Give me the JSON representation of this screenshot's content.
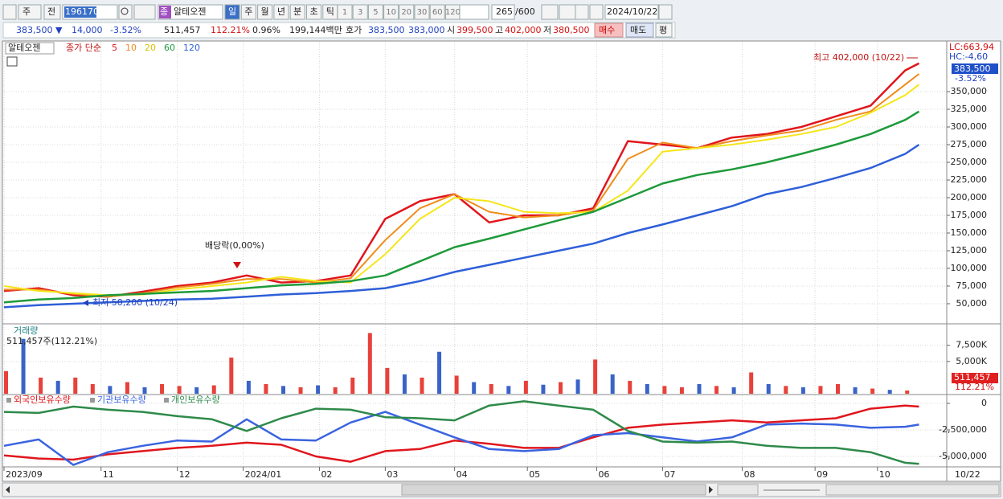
{
  "toolbar": {
    "market": "주",
    "prev": "전",
    "code": "196170",
    "type_badge": "종",
    "name": "알테오젠",
    "periods": [
      "일",
      "주",
      "월",
      "년",
      "분",
      "초",
      "틱"
    ],
    "intervals": [
      "1",
      "3",
      "5",
      "10",
      "20",
      "30",
      "60",
      "120"
    ],
    "count": "265",
    "max": "/600",
    "date": "2024/10/22"
  },
  "info_bar": {
    "price": "383,500 ▼",
    "change": "14,000",
    "change_rate": "-3.52%",
    "volume": "511,457",
    "volume_ratio": "112.21%",
    "turnover": "0.96%",
    "amount": "199,144백만",
    "quote_label": "호가",
    "ask": "383,500",
    "bid": "383,000",
    "open_label": "시",
    "open": "399,500",
    "high_label": "고",
    "high": "402,000",
    "low_label": "저",
    "low": "380,500",
    "buy": "매수",
    "sell": "매도",
    "eval": "평"
  },
  "chart_data": [
    {
      "type": "line",
      "stock_label": "알테오젠",
      "legend_prefix": "종가 단순",
      "x": [
        0,
        10,
        20,
        30,
        40,
        50,
        60,
        70,
        80,
        90,
        100,
        110,
        120,
        130,
        140,
        150,
        160,
        170,
        180,
        190,
        200,
        210,
        220,
        230,
        240,
        250,
        260,
        264
      ],
      "series": [
        {
          "name": "5",
          "color": "#e0161d",
          "values": [
            68000,
            72000,
            62000,
            60000,
            67000,
            75000,
            80000,
            90000,
            80000,
            82000,
            90000,
            170000,
            195000,
            205000,
            165000,
            175000,
            175000,
            185000,
            280000,
            275000,
            270000,
            285000,
            290000,
            300000,
            315000,
            330000,
            380000,
            390000
          ]
        },
        {
          "name": "10",
          "color": "#f08c1c",
          "values": [
            70000,
            70000,
            64000,
            60000,
            65000,
            73000,
            78000,
            85000,
            85000,
            80000,
            86000,
            140000,
            185000,
            205000,
            180000,
            172000,
            175000,
            182000,
            255000,
            278000,
            270000,
            280000,
            288000,
            295000,
            310000,
            322000,
            360000,
            375000
          ]
        },
        {
          "name": "20",
          "color": "#f5e61a",
          "values": [
            75000,
            68000,
            65000,
            62000,
            63000,
            70000,
            75000,
            80000,
            88000,
            82000,
            80000,
            120000,
            170000,
            200000,
            195000,
            180000,
            178000,
            180000,
            210000,
            265000,
            270000,
            275000,
            282000,
            290000,
            300000,
            320000,
            345000,
            360000
          ]
        },
        {
          "name": "60",
          "color": "#1e9a3a",
          "values": [
            52000,
            56000,
            58000,
            62000,
            64000,
            66000,
            68000,
            72000,
            76000,
            78000,
            82000,
            90000,
            110000,
            130000,
            142000,
            155000,
            168000,
            180000,
            200000,
            220000,
            232000,
            240000,
            250000,
            262000,
            275000,
            290000,
            310000,
            322000
          ]
        },
        {
          "name": "120",
          "color": "#2e5fd8",
          "values": [
            45000,
            48000,
            50000,
            52000,
            54000,
            56000,
            57000,
            60000,
            63000,
            65000,
            68000,
            72000,
            82000,
            95000,
            105000,
            115000,
            125000,
            135000,
            150000,
            162000,
            175000,
            188000,
            205000,
            215000,
            228000,
            242000,
            262000,
            275000
          ]
        }
      ],
      "xlim": [
        0,
        272
      ],
      "ylim": [
        22700,
        420500
      ],
      "yticks": [
        {
          "value": 50000,
          "label": "50,000"
        },
        {
          "value": 75000,
          "label": "75,000"
        },
        {
          "value": 100000,
          "label": "100,000"
        },
        {
          "value": 125000,
          "label": "125,000"
        },
        {
          "value": 150000,
          "label": "150,000"
        },
        {
          "value": 175000,
          "label": "175,000"
        },
        {
          "value": 200000,
          "label": "200,000"
        },
        {
          "value": 225000,
          "label": "225,000"
        },
        {
          "value": 250000,
          "label": "250,000"
        },
        {
          "value": 275000,
          "label": "275,000"
        },
        {
          "value": 300000,
          "label": "300,000"
        },
        {
          "value": 325000,
          "label": "325,000"
        },
        {
          "value": 350000,
          "label": "350,000"
        }
      ],
      "grid": true,
      "annotations": [
        "최고 402,000 (10/22)",
        "최저 50,200 (10/24)",
        "배당락(0,00%)"
      ],
      "axis_labels": {
        "lc": "LC:663,94",
        "hc": "HC:-4,60",
        "last": "383,500",
        "change": "-3.52%"
      }
    },
    {
      "type": "bar",
      "title": "거래량",
      "subtitle": "511,457주(112.21%)",
      "x": [
        0,
        5,
        10,
        15,
        20,
        25,
        30,
        35,
        40,
        45,
        50,
        55,
        60,
        65,
        70,
        75,
        80,
        85,
        90,
        95,
        100,
        105,
        110,
        115,
        120,
        125,
        130,
        135,
        140,
        145,
        150,
        155,
        160,
        165,
        170,
        175,
        180,
        185,
        190,
        195,
        200,
        205,
        210,
        215,
        220,
        225,
        230,
        235,
        240,
        245,
        250,
        255,
        260
      ],
      "values": [
        3500000,
        8500000,
        2500000,
        2000000,
        2500000,
        1500000,
        1200000,
        1800000,
        1000000,
        1500000,
        1200000,
        1000000,
        1300000,
        5600000,
        2000000,
        1500000,
        1200000,
        1000000,
        1300000,
        1000000,
        2500000,
        9400000,
        4000000,
        3000000,
        2500000,
        6500000,
        2800000,
        1800000,
        1500000,
        1200000,
        2000000,
        1400000,
        1800000,
        2200000,
        5300000,
        3000000,
        2000000,
        1500000,
        1200000,
        1000000,
        1500000,
        1200000,
        1000000,
        3300000,
        1500000,
        1200000,
        1000000,
        1200000,
        1500000,
        1000000,
        800000,
        600000,
        500000
      ],
      "colors": [
        "#e8413a",
        "#3a63c8",
        "#e8413a",
        "#3a63c8",
        "#e8413a",
        "#e8413a",
        "#3a63c8",
        "#e8413a",
        "#3a63c8",
        "#e8413a",
        "#e8413a",
        "#3a63c8",
        "#e8413a",
        "#e8413a",
        "#3a63c8",
        "#e8413a",
        "#3a63c8",
        "#e8413a",
        "#3a63c8",
        "#e8413a",
        "#e8413a",
        "#e8413a",
        "#e8413a",
        "#3a63c8",
        "#e8413a",
        "#3a63c8",
        "#e8413a",
        "#3a63c8",
        "#e8413a",
        "#3a63c8",
        "#e8413a",
        "#3a63c8",
        "#e8413a",
        "#3a63c8",
        "#e8413a",
        "#3a63c8",
        "#e8413a",
        "#3a63c8",
        "#e8413a",
        "#e8413a",
        "#3a63c8",
        "#e8413a",
        "#3a63c8",
        "#e8413a",
        "#3a63c8",
        "#e8413a",
        "#3a63c8",
        "#e8413a",
        "#e8413a",
        "#3a63c8",
        "#e8413a",
        "#3a63c8",
        "#e8413a"
      ],
      "xlim": [
        0,
        272
      ],
      "ylim": [
        0,
        10700000
      ],
      "yticks": [
        {
          "value": 5000000,
          "label": "5,000K"
        },
        {
          "value": 7500000,
          "label": "7,500K"
        }
      ],
      "axis_labels": {
        "last": "511,457",
        "ratio": "112.21%"
      }
    },
    {
      "type": "line",
      "x": [
        0,
        10,
        20,
        30,
        40,
        50,
        60,
        70,
        80,
        90,
        100,
        110,
        120,
        130,
        140,
        150,
        160,
        170,
        180,
        190,
        200,
        210,
        220,
        230,
        240,
        250,
        260,
        264
      ],
      "series": [
        {
          "name": "외국인보유수량",
          "color": "#e0161d",
          "values": [
            -4900000,
            -5200000,
            -5300000,
            -4800000,
            -4500000,
            -4200000,
            -4000000,
            -3700000,
            -3900000,
            -5000000,
            -5500000,
            -4500000,
            -4300000,
            -3500000,
            -3800000,
            -4200000,
            -4200000,
            -3200000,
            -2300000,
            -2000000,
            -1800000,
            -1600000,
            -1800000,
            -1600000,
            -1400000,
            -500000,
            -200000,
            -300000
          ]
        },
        {
          "name": "기관보유수량",
          "color": "#3a63e0",
          "values": [
            -4000000,
            -3400000,
            -5800000,
            -4600000,
            -4000000,
            -3500000,
            -3600000,
            -1500000,
            -3400000,
            -3500000,
            -1800000,
            -800000,
            -2000000,
            -3200000,
            -4300000,
            -4500000,
            -4300000,
            -3000000,
            -2800000,
            -3200000,
            -3600000,
            -3200000,
            -2000000,
            -1900000,
            -2000000,
            -2300000,
            -2200000,
            -2000000
          ]
        },
        {
          "name": "개인보유수량",
          "color": "#2e8a4a",
          "values": [
            -800000,
            -900000,
            -300000,
            -600000,
            -800000,
            -1200000,
            -1500000,
            -2600000,
            -1400000,
            -500000,
            -600000,
            -1300000,
            -1400000,
            -1600000,
            -200000,
            200000,
            -200000,
            -600000,
            -2600000,
            -3600000,
            -3700000,
            -3600000,
            -4000000,
            -4200000,
            -4200000,
            -4600000,
            -5600000,
            -5700000
          ]
        }
      ],
      "xlim": [
        0,
        272
      ],
      "ylim": [
        -5909000,
        760000
      ],
      "yticks": [
        0,
        {
          "value": -2500000,
          "label": "-2,500,000"
        },
        {
          "value": -5000000,
          "label": "-5,000,000"
        }
      ],
      "xticks": [
        {
          "value": 0,
          "label": "2023/09"
        },
        {
          "value": 28,
          "label": "11"
        },
        {
          "value": 50,
          "label": "12"
        },
        {
          "value": 69,
          "label": "2024/01"
        },
        {
          "value": 91,
          "label": "02"
        },
        {
          "value": 110,
          "label": "03"
        },
        {
          "value": 130,
          "label": "04"
        },
        {
          "value": 151,
          "label": "05"
        },
        {
          "value": 171,
          "label": "06"
        },
        {
          "value": 190,
          "label": "07"
        },
        {
          "value": 213,
          "label": "08"
        },
        {
          "value": 234,
          "label": "09"
        },
        {
          "value": 252,
          "label": "10"
        }
      ],
      "x_end_label": "10/22"
    }
  ]
}
